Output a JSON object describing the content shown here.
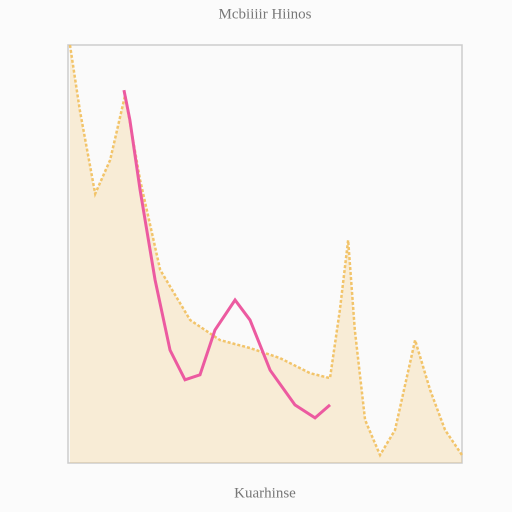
{
  "chart_data": {
    "type": "line",
    "title": "Mcbiiiir Hiinos",
    "x_label": "Kuarhinse",
    "xlim": [
      0,
      100
    ],
    "ylim": [
      0,
      100
    ],
    "series": [
      {
        "color": "#f2c46a",
        "fill": true,
        "x": [
          0.5,
          3,
          6.9,
          10.7,
          14.5,
          18.3,
          23.4,
          31,
          38.6,
          46.2,
          53.8,
          61.4,
          66.5,
          69,
          71.1,
          72.8,
          75.4,
          79.2,
          83,
          88.1,
          91.9,
          95.7,
          100
        ],
        "values": [
          100,
          84.4,
          64.4,
          72.5,
          88,
          67.7,
          46.2,
          34.2,
          29.4,
          27.5,
          25.1,
          21.5,
          20.3,
          36.6,
          53.3,
          31.8,
          10.3,
          1.9,
          7.9,
          29.4,
          17.5,
          7.9,
          1.9
        ]
      },
      {
        "color": "#ec5aa0",
        "fill": false,
        "x": [
          14.2,
          15.7,
          18.3,
          22.1,
          25.9,
          29.7,
          33.5,
          37.3,
          42.4,
          46.2,
          51.3,
          57.6,
          62.7,
          66.5
        ],
        "values": [
          89.2,
          82.1,
          65.3,
          43.8,
          27,
          19.9,
          21.1,
          31.8,
          39,
          34.2,
          22.2,
          13.9,
          10.8,
          13.9
        ]
      }
    ]
  }
}
